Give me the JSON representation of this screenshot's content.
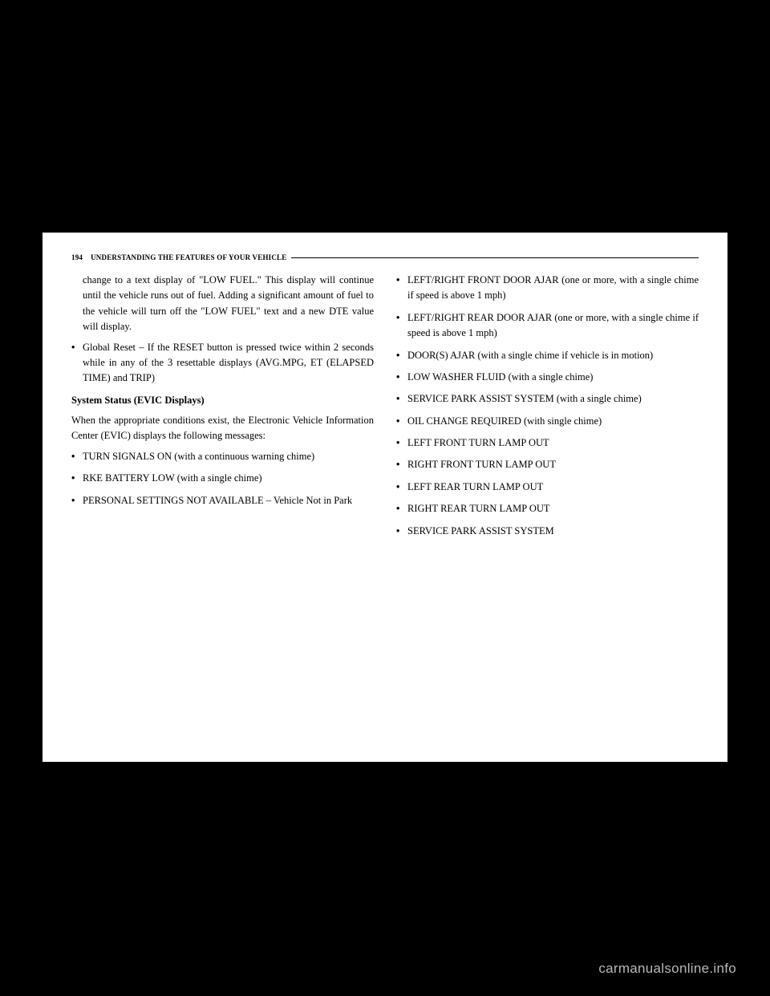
{
  "page_number": "194",
  "header_title": "UNDERSTANDING THE FEATURES OF YOUR VEHICLE",
  "left": {
    "para_cont": "change to a text display of \"LOW FUEL.\" This display will continue until the vehicle runs out of fuel. Adding a significant amount of fuel to the vehicle will turn off the \"LOW FUEL\" text and a new DTE value will display.",
    "bullet1": "Global Reset – If the RESET button is pressed twice within 2 seconds while in any of the 3 resettable displays (AVG.MPG, ET (ELAPSED TIME) and TRIP)",
    "subhead": "System Status (EVIC Displays)",
    "para2": "When the appropriate conditions exist, the Electronic Vehicle Information Center (EVIC) displays the following messages:",
    "b2": "TURN SIGNALS ON (with a continuous warning chime)",
    "b3": "RKE BATTERY LOW (with a single chime)",
    "b4": "PERSONAL SETTINGS NOT AVAILABLE – Vehicle Not in Park"
  },
  "right": {
    "r1": "LEFT/RIGHT FRONT DOOR AJAR (one or more, with a single chime if speed is above 1 mph)",
    "r2": "LEFT/RIGHT REAR DOOR AJAR (one or more, with a single chime if speed is above 1 mph)",
    "r3": "DOOR(S) AJAR (with a single chime if vehicle is in motion)",
    "r4": "LOW WASHER FLUID (with a single chime)",
    "r5": "SERVICE PARK ASSIST SYSTEM (with a single chime)",
    "r6": "OIL CHANGE REQUIRED (with single chime)",
    "r7": "LEFT FRONT TURN LAMP OUT",
    "r8": "RIGHT FRONT TURN LAMP OUT",
    "r9": "LEFT REAR TURN LAMP OUT",
    "r10": "RIGHT REAR TURN LAMP OUT",
    "r11": "SERVICE PARK ASSIST SYSTEM"
  },
  "watermark": "carmanualsonline.info"
}
